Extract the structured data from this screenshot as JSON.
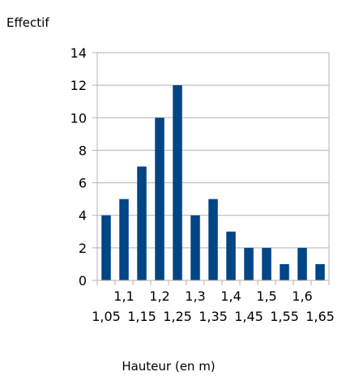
{
  "chart_data": {
    "type": "bar",
    "ylabel": "Effectif",
    "xlabel": "Hauteur (en m)",
    "ylim": [
      0,
      14
    ],
    "yticks": [
      0,
      2,
      4,
      6,
      8,
      10,
      12,
      14
    ],
    "grid": true,
    "bar_color": "#004586",
    "categories": [
      "1,05",
      "1,1",
      "1,15",
      "1,2",
      "1,25",
      "1,3",
      "1,35",
      "1,4",
      "1,45",
      "1,5",
      "1,55",
      "1,6",
      "1,65"
    ],
    "values": [
      4,
      5,
      7,
      10,
      12,
      4,
      5,
      3,
      2,
      2,
      1,
      2,
      1
    ]
  }
}
